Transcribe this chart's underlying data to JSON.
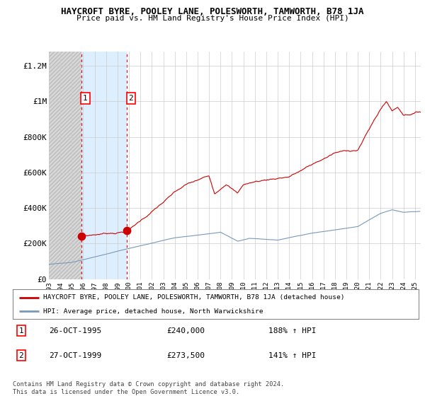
{
  "title": "HAYCROFT BYRE, POOLEY LANE, POLESWORTH, TAMWORTH, B78 1JA",
  "subtitle": "Price paid vs. HM Land Registry's House Price Index (HPI)",
  "legend_line1": "HAYCROFT BYRE, POOLEY LANE, POLESWORTH, TAMWORTH, B78 1JA (detached house)",
  "legend_line2": "HPI: Average price, detached house, North Warwickshire",
  "footnote": "Contains HM Land Registry data © Crown copyright and database right 2024.\nThis data is licensed under the Open Government Licence v3.0.",
  "sale1_date": "26-OCT-1995",
  "sale1_price": 240000,
  "sale1_hpi_pct": "188%",
  "sale2_date": "27-OCT-1999",
  "sale2_price": 273500,
  "sale2_hpi_pct": "141%",
  "sale1_x": 1995.82,
  "sale2_x": 1999.82,
  "ylim_min": 0,
  "ylim_max": 1280000,
  "xlim_min": 1993.0,
  "xlim_max": 2025.5,
  "red_color": "#cc0000",
  "blue_color": "#7799bb",
  "hatch_fill": "#d8d8d8",
  "hatch_edge": "#bbbbbb",
  "blue_fill": "#ddeeff",
  "grid_color": "#cccccc",
  "background_color": "#ffffff",
  "yticks": [
    0,
    200000,
    400000,
    600000,
    800000,
    1000000,
    1200000
  ],
  "ytick_labels": [
    "£0",
    "£200K",
    "£400K",
    "£600K",
    "£800K",
    "£1M",
    "£1.2M"
  ],
  "xticks": [
    1993,
    1994,
    1995,
    1996,
    1997,
    1998,
    1999,
    2000,
    2001,
    2002,
    2003,
    2004,
    2005,
    2006,
    2007,
    2008,
    2009,
    2010,
    2011,
    2012,
    2013,
    2014,
    2015,
    2016,
    2017,
    2018,
    2019,
    2020,
    2021,
    2022,
    2023,
    2024,
    2025
  ]
}
